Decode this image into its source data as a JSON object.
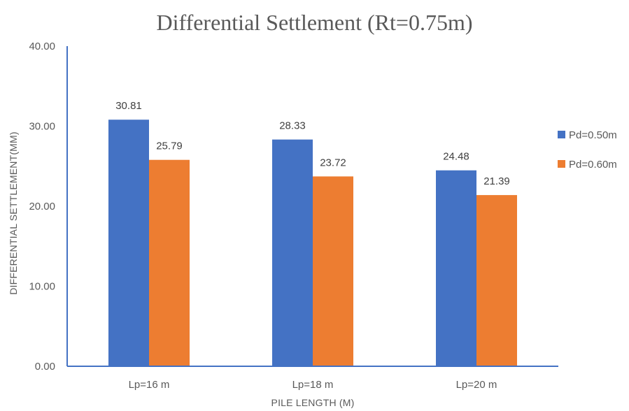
{
  "chart_data": {
    "type": "bar",
    "title": "Differential  Settlement  (Rt=0.75m)",
    "xlabel": "PILE LENGTH (M)",
    "ylabel": "DIFFERENTIAL SETTLEMENT(MM)",
    "categories": [
      "Lp=16 m",
      "Lp=18 m",
      "Lp=20 m"
    ],
    "series": [
      {
        "name": "Pd=0.50m",
        "color": "#4472C4",
        "values": [
          30.81,
          28.33,
          24.48
        ]
      },
      {
        "name": "Pd=0.60m",
        "color": "#ED7D31",
        "values": [
          25.79,
          23.72,
          21.39
        ]
      }
    ],
    "ylim": [
      0,
      40
    ],
    "yticks": [
      "0.00",
      "10.00",
      "20.00",
      "30.00",
      "40.00"
    ],
    "data_labels": [
      [
        "30.81",
        "28.33",
        "24.48"
      ],
      [
        "25.79",
        "23.72",
        "21.39"
      ]
    ],
    "grid": false,
    "legend": "right"
  }
}
